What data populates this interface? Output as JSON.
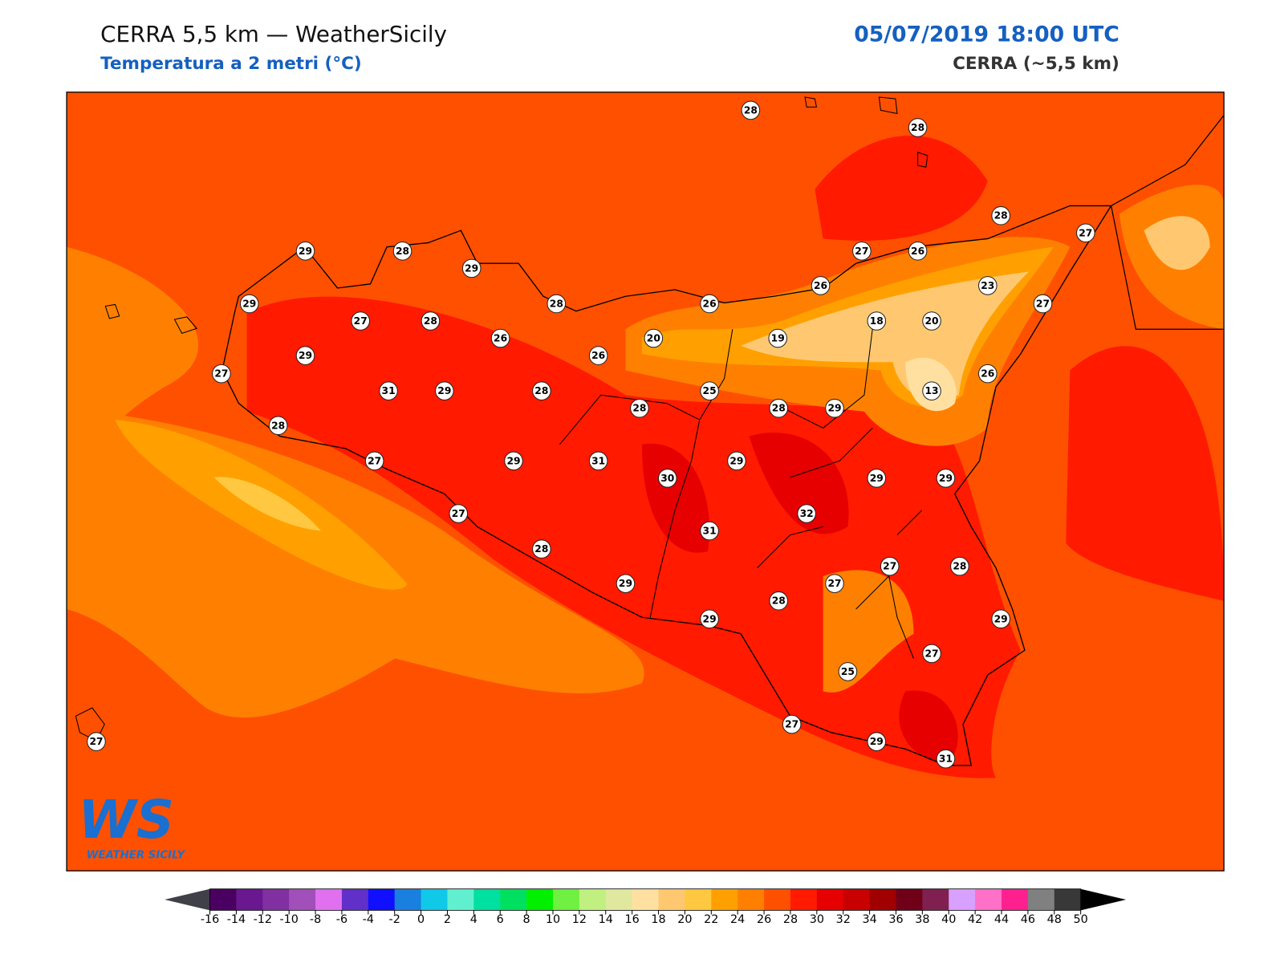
{
  "header": {
    "title": "CERRA 5,5 km — WeatherSicily",
    "subtitle": "Temperatura a 2 metri (°C)",
    "datetime": "05/07/2019 18:00 UTC",
    "model": "CERRA (~5,5 km)"
  },
  "logo": {
    "mark": "WS",
    "name": "WEATHER SICILY"
  },
  "stations": [
    28,
    28,
    28,
    27,
    29,
    28,
    29,
    27,
    26,
    29,
    28,
    26,
    26,
    23,
    27,
    27,
    28,
    20,
    19,
    18,
    20,
    26,
    29,
    26,
    27,
    26,
    31,
    29,
    28,
    25,
    13,
    28,
    28,
    29,
    28,
    27,
    29,
    31,
    29,
    30,
    29,
    29,
    27,
    32,
    31,
    28,
    27,
    28,
    29,
    27,
    28,
    29,
    29,
    27,
    25,
    27,
    29,
    31,
    27
  ],
  "colorbar": {
    "ticks": [
      -16,
      -14,
      -12,
      -10,
      -8,
      -6,
      -4,
      -2,
      0,
      2,
      4,
      6,
      8,
      10,
      12,
      14,
      16,
      18,
      20,
      22,
      24,
      26,
      28,
      30,
      32,
      34,
      36,
      38,
      40,
      42,
      44,
      46,
      48,
      50
    ],
    "colors": [
      "#4a0060",
      "#6a1890",
      "#8030a0",
      "#a050b8",
      "#e070f0",
      "#6030c8",
      "#1010ff",
      "#1a80e0",
      "#10c8e8",
      "#60f0d0",
      "#00e0a0",
      "#00e060",
      "#00f000",
      "#70f040",
      "#c0f080",
      "#e0e8a0",
      "#ffe0a0",
      "#ffc870",
      "#ffc840",
      "#ffa000",
      "#ff8000",
      "#ff5000",
      "#ff1a00",
      "#e60000",
      "#c80000",
      "#a00000",
      "#700018",
      "#802050",
      "#d8a0ff",
      "#ff70c8",
      "#ff2090",
      "#808080",
      "#383838"
    ],
    "under_color": "#404048",
    "over_color": "#000000"
  }
}
